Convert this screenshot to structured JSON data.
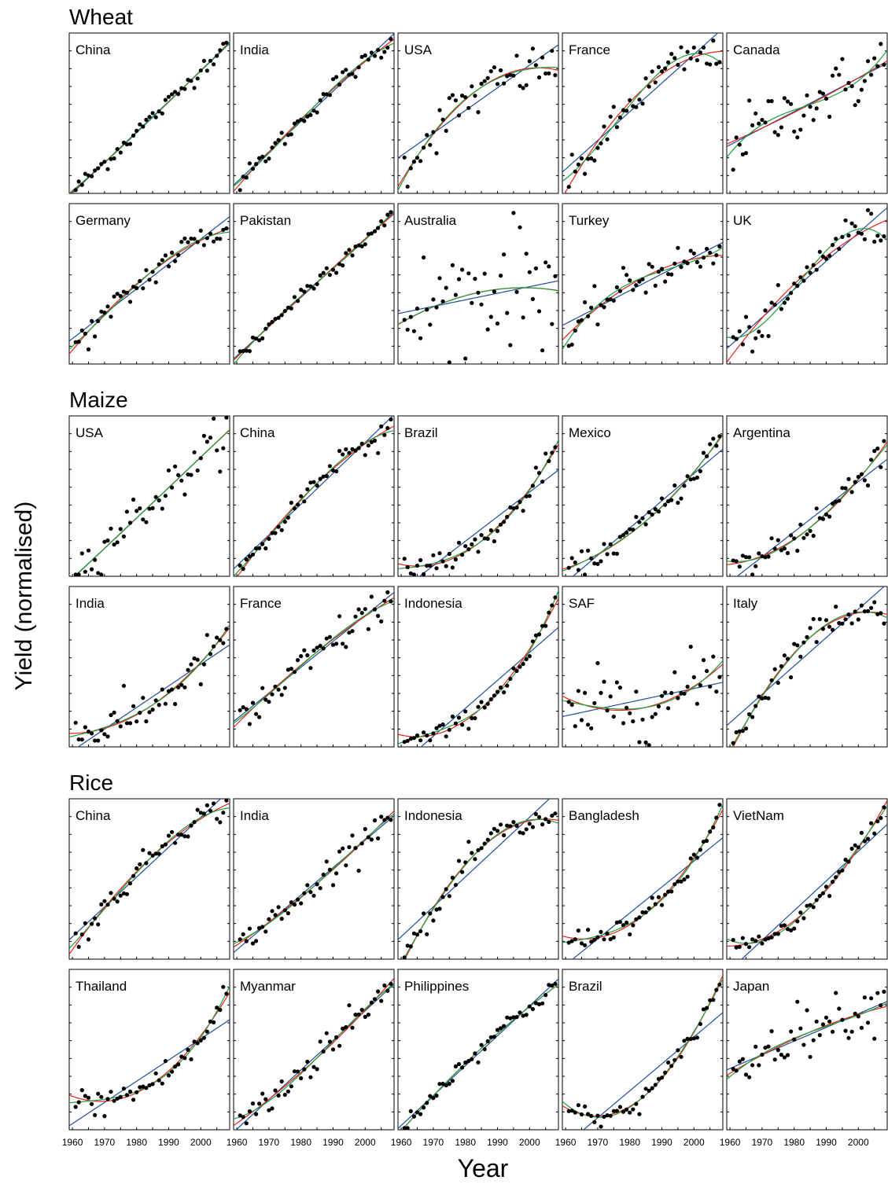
{
  "figure": {
    "ylabel": "Yield (normalised)",
    "xlabel": "Year",
    "xticks": [
      "1960",
      "1970",
      "1980",
      "1990",
      "2000"
    ],
    "legend_colors": {
      "points": "#000000",
      "linear": "#1f4e9c",
      "quadratic": "#e8211c",
      "cubic": "#1d9e3a"
    }
  },
  "chart_data": [
    {
      "type": "scatter",
      "group": "Wheat",
      "title": "China",
      "x_range": [
        1961,
        2008
      ],
      "trend": [
        [
          1961,
          0.0
        ],
        [
          1970,
          0.17
        ],
        [
          1980,
          0.38
        ],
        [
          1990,
          0.57
        ],
        [
          2000,
          0.79
        ],
        [
          2008,
          0.97
        ]
      ],
      "noise": 0.03
    },
    {
      "type": "scatter",
      "group": "Wheat",
      "title": "India",
      "x_range": [
        1961,
        2008
      ],
      "trend": [
        [
          1961,
          0.04
        ],
        [
          1970,
          0.24
        ],
        [
          1980,
          0.45
        ],
        [
          1990,
          0.68
        ],
        [
          2000,
          0.84
        ],
        [
          2008,
          0.96
        ]
      ],
      "noise": 0.03
    },
    {
      "type": "scatter",
      "group": "Wheat",
      "title": "USA",
      "x_range": [
        1961,
        2008
      ],
      "trend": [
        [
          1961,
          0.15
        ],
        [
          1970,
          0.38
        ],
        [
          1980,
          0.58
        ],
        [
          1990,
          0.7
        ],
        [
          2000,
          0.78
        ],
        [
          2008,
          0.83
        ]
      ],
      "noise": 0.08
    },
    {
      "type": "scatter",
      "group": "Wheat",
      "title": "France",
      "x_range": [
        1961,
        2008
      ],
      "trend": [
        [
          1961,
          0.05
        ],
        [
          1970,
          0.28
        ],
        [
          1980,
          0.55
        ],
        [
          1990,
          0.77
        ],
        [
          2000,
          0.88
        ],
        [
          2008,
          0.86
        ]
      ],
      "noise": 0.06
    },
    {
      "type": "scatter",
      "group": "Wheat",
      "title": "Canada",
      "x_range": [
        1961,
        2008
      ],
      "trend": [
        [
          1961,
          0.3
        ],
        [
          1970,
          0.42
        ],
        [
          1980,
          0.52
        ],
        [
          1990,
          0.62
        ],
        [
          2000,
          0.72
        ],
        [
          2008,
          0.85
        ]
      ],
      "noise": 0.1
    },
    {
      "type": "scatter",
      "group": "Wheat",
      "title": "Germany",
      "x_range": [
        1961,
        2008
      ],
      "trend": [
        [
          1961,
          0.1
        ],
        [
          1970,
          0.28
        ],
        [
          1980,
          0.48
        ],
        [
          1990,
          0.67
        ],
        [
          2000,
          0.8
        ],
        [
          2008,
          0.87
        ]
      ],
      "noise": 0.05
    },
    {
      "type": "scatter",
      "group": "Wheat",
      "title": "Pakistan",
      "x_range": [
        1961,
        2008
      ],
      "trend": [
        [
          1961,
          0.02
        ],
        [
          1970,
          0.22
        ],
        [
          1980,
          0.43
        ],
        [
          1990,
          0.62
        ],
        [
          2000,
          0.8
        ],
        [
          2008,
          0.93
        ]
      ],
      "noise": 0.03
    },
    {
      "type": "scatter",
      "group": "Wheat",
      "title": "Australia",
      "x_range": [
        1961,
        2008
      ],
      "trend": [
        [
          1961,
          0.3
        ],
        [
          1970,
          0.35
        ],
        [
          1980,
          0.42
        ],
        [
          1990,
          0.5
        ],
        [
          2000,
          0.54
        ],
        [
          2008,
          0.5
        ]
      ],
      "noise": 0.2
    },
    {
      "type": "scatter",
      "group": "Wheat",
      "title": "Turkey",
      "x_range": [
        1961,
        2008
      ],
      "trend": [
        [
          1961,
          0.1
        ],
        [
          1970,
          0.35
        ],
        [
          1980,
          0.5
        ],
        [
          1990,
          0.6
        ],
        [
          2000,
          0.66
        ],
        [
          2008,
          0.7
        ]
      ],
      "noise": 0.06
    },
    {
      "type": "scatter",
      "group": "Wheat",
      "title": "UK",
      "x_range": [
        1961,
        2008
      ],
      "trend": [
        [
          1961,
          0.12
        ],
        [
          1970,
          0.2
        ],
        [
          1980,
          0.45
        ],
        [
          1990,
          0.72
        ],
        [
          2000,
          0.88
        ],
        [
          2008,
          0.84
        ]
      ],
      "noise": 0.06
    },
    {
      "type": "scatter",
      "group": "Maize",
      "title": "USA",
      "x_range": [
        1961,
        2008
      ],
      "trend": [
        [
          1961,
          0.0
        ],
        [
          1970,
          0.18
        ],
        [
          1980,
          0.38
        ],
        [
          1990,
          0.55
        ],
        [
          2000,
          0.75
        ],
        [
          2008,
          0.95
        ]
      ],
      "noise": 0.07
    },
    {
      "type": "scatter",
      "group": "Maize",
      "title": "China",
      "x_range": [
        1961,
        2008
      ],
      "trend": [
        [
          1961,
          0.0
        ],
        [
          1970,
          0.22
        ],
        [
          1980,
          0.48
        ],
        [
          1990,
          0.72
        ],
        [
          2000,
          0.86
        ],
        [
          2008,
          0.92
        ]
      ],
      "noise": 0.04
    },
    {
      "type": "scatter",
      "group": "Maize",
      "title": "Brazil",
      "x_range": [
        1961,
        2008
      ],
      "trend": [
        [
          1961,
          0.02
        ],
        [
          1970,
          0.05
        ],
        [
          1980,
          0.13
        ],
        [
          1990,
          0.28
        ],
        [
          2000,
          0.52
        ],
        [
          2008,
          0.82
        ]
      ],
      "noise": 0.04
    },
    {
      "type": "scatter",
      "group": "Maize",
      "title": "Mexico",
      "x_range": [
        1961,
        2008
      ],
      "trend": [
        [
          1961,
          0.0
        ],
        [
          1970,
          0.1
        ],
        [
          1980,
          0.25
        ],
        [
          1990,
          0.42
        ],
        [
          2000,
          0.65
        ],
        [
          2008,
          0.9
        ]
      ],
      "noise": 0.04
    },
    {
      "type": "scatter",
      "group": "Maize",
      "title": "Argentina",
      "x_range": [
        1961,
        2008
      ],
      "trend": [
        [
          1961,
          0.0
        ],
        [
          1970,
          0.1
        ],
        [
          1980,
          0.22
        ],
        [
          1990,
          0.38
        ],
        [
          2000,
          0.62
        ],
        [
          2008,
          0.87
        ]
      ],
      "noise": 0.07
    },
    {
      "type": "scatter",
      "group": "Maize",
      "title": "India",
      "x_range": [
        1961,
        2008
      ],
      "trend": [
        [
          1961,
          0.05
        ],
        [
          1970,
          0.09
        ],
        [
          1980,
          0.18
        ],
        [
          1990,
          0.32
        ],
        [
          2000,
          0.5
        ],
        [
          2008,
          0.75
        ]
      ],
      "noise": 0.07
    },
    {
      "type": "scatter",
      "group": "Maize",
      "title": "France",
      "x_range": [
        1961,
        2008
      ],
      "trend": [
        [
          1961,
          0.1
        ],
        [
          1970,
          0.3
        ],
        [
          1980,
          0.48
        ],
        [
          1990,
          0.67
        ],
        [
          2000,
          0.83
        ],
        [
          2008,
          0.95
        ]
      ],
      "noise": 0.07
    },
    {
      "type": "scatter",
      "group": "Maize",
      "title": "Indonesia",
      "x_range": [
        1961,
        2008
      ],
      "trend": [
        [
          1961,
          0.0
        ],
        [
          1970,
          0.04
        ],
        [
          1980,
          0.15
        ],
        [
          1990,
          0.33
        ],
        [
          2000,
          0.58
        ],
        [
          2008,
          0.92
        ]
      ],
      "noise": 0.03
    },
    {
      "type": "scatter",
      "group": "Maize",
      "title": "SAF",
      "x_range": [
        1961,
        2008
      ],
      "trend": [
        [
          1961,
          0.15
        ],
        [
          1970,
          0.23
        ],
        [
          1980,
          0.26
        ],
        [
          1990,
          0.28
        ],
        [
          2000,
          0.35
        ],
        [
          2008,
          0.55
        ]
      ],
      "noise": 0.12
    },
    {
      "type": "scatter",
      "group": "Maize",
      "title": "Italy",
      "x_range": [
        1961,
        2008
      ],
      "trend": [
        [
          1961,
          0.0
        ],
        [
          1970,
          0.32
        ],
        [
          1980,
          0.6
        ],
        [
          1990,
          0.8
        ],
        [
          2000,
          0.87
        ],
        [
          2008,
          0.86
        ]
      ],
      "noise": 0.05
    },
    {
      "type": "scatter",
      "group": "Rice",
      "title": "China",
      "x_range": [
        1961,
        2008
      ],
      "trend": [
        [
          1961,
          0.1
        ],
        [
          1970,
          0.3
        ],
        [
          1980,
          0.55
        ],
        [
          1990,
          0.78
        ],
        [
          2000,
          0.92
        ],
        [
          2008,
          0.97
        ]
      ],
      "noise": 0.04
    },
    {
      "type": "scatter",
      "group": "Rice",
      "title": "India",
      "x_range": [
        1961,
        2008
      ],
      "trend": [
        [
          1961,
          0.1
        ],
        [
          1970,
          0.2
        ],
        [
          1980,
          0.36
        ],
        [
          1990,
          0.58
        ],
        [
          2000,
          0.8
        ],
        [
          2008,
          0.92
        ]
      ],
      "noise": 0.05
    },
    {
      "type": "scatter",
      "group": "Rice",
      "title": "Indonesia",
      "x_range": [
        1961,
        2008
      ],
      "trend": [
        [
          1961,
          0.03
        ],
        [
          1970,
          0.25
        ],
        [
          1980,
          0.6
        ],
        [
          1990,
          0.8
        ],
        [
          2000,
          0.86
        ],
        [
          2008,
          0.9
        ]
      ],
      "noise": 0.04
    },
    {
      "type": "scatter",
      "group": "Rice",
      "title": "Bangladesh",
      "x_range": [
        1961,
        2008
      ],
      "trend": [
        [
          1961,
          0.1
        ],
        [
          1970,
          0.12
        ],
        [
          1980,
          0.2
        ],
        [
          1990,
          0.35
        ],
        [
          2000,
          0.6
        ],
        [
          2008,
          0.95
        ]
      ],
      "noise": 0.03
    },
    {
      "type": "scatter",
      "group": "Rice",
      "title": "VietNam",
      "x_range": [
        1961,
        2008
      ],
      "trend": [
        [
          1961,
          0.08
        ],
        [
          1970,
          0.08
        ],
        [
          1980,
          0.18
        ],
        [
          1990,
          0.42
        ],
        [
          2000,
          0.72
        ],
        [
          2008,
          0.95
        ]
      ],
      "noise": 0.03
    },
    {
      "type": "scatter",
      "group": "Rice",
      "title": "Thailand",
      "x_range": [
        1961,
        2008
      ],
      "trend": [
        [
          1961,
          0.15
        ],
        [
          1970,
          0.15
        ],
        [
          1980,
          0.22
        ],
        [
          1990,
          0.35
        ],
        [
          2000,
          0.55
        ],
        [
          2008,
          0.87
        ]
      ],
      "noise": 0.05
    },
    {
      "type": "scatter",
      "group": "Rice",
      "title": "Myanmar",
      "x_range": [
        1961,
        2008
      ],
      "trend": [
        [
          1961,
          0.05
        ],
        [
          1970,
          0.15
        ],
        [
          1980,
          0.35
        ],
        [
          1990,
          0.58
        ],
        [
          2000,
          0.75
        ],
        [
          2008,
          0.92
        ]
      ],
      "noise": 0.06
    },
    {
      "type": "scatter",
      "group": "Rice",
      "title": "Philippines",
      "x_range": [
        1961,
        2008
      ],
      "trend": [
        [
          1961,
          0.0
        ],
        [
          1970,
          0.2
        ],
        [
          1980,
          0.42
        ],
        [
          1990,
          0.62
        ],
        [
          2000,
          0.78
        ],
        [
          2008,
          0.93
        ]
      ],
      "noise": 0.03
    },
    {
      "type": "scatter",
      "group": "Rice",
      "title": "Brazil",
      "x_range": [
        1961,
        2008
      ],
      "trend": [
        [
          1961,
          0.1
        ],
        [
          1970,
          0.04
        ],
        [
          1980,
          0.1
        ],
        [
          1990,
          0.3
        ],
        [
          2000,
          0.6
        ],
        [
          2008,
          0.95
        ]
      ],
      "noise": 0.03
    },
    {
      "type": "scatter",
      "group": "Rice",
      "title": "Japan",
      "x_range": [
        1961,
        2008
      ],
      "trend": [
        [
          1961,
          0.3
        ],
        [
          1970,
          0.5
        ],
        [
          1980,
          0.62
        ],
        [
          1990,
          0.68
        ],
        [
          2000,
          0.75
        ],
        [
          2008,
          0.8
        ]
      ],
      "noise": 0.08
    }
  ]
}
